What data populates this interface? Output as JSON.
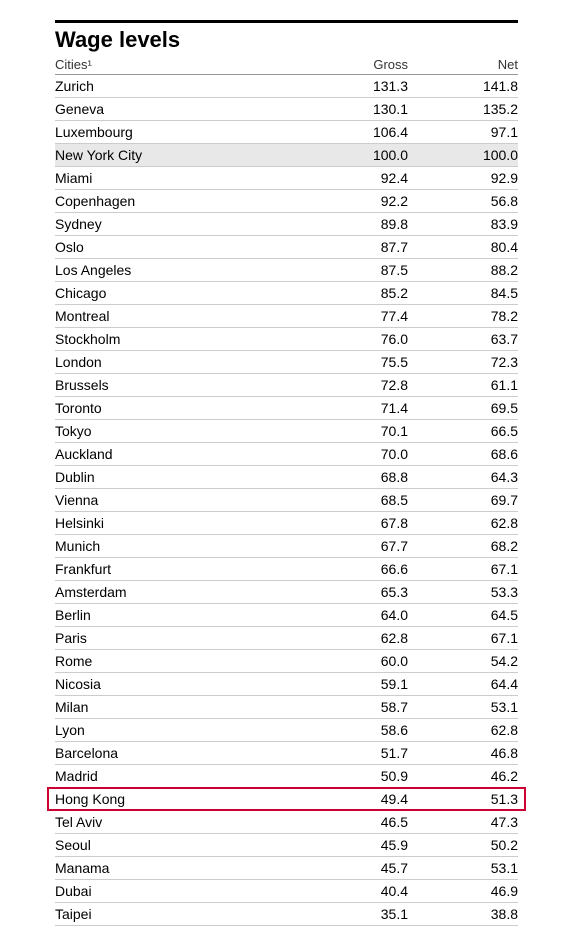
{
  "title": "Wage levels",
  "columns": {
    "city": "Cities¹",
    "gross": "Gross",
    "net": "Net"
  },
  "styling": {
    "title_fontsize": 22,
    "title_fontweight": "bold",
    "header_fontsize": 13,
    "row_fontsize": 14,
    "background_color": "#ffffff",
    "shaded_row_color": "#e8e8e8",
    "highlight_border_color": "#cc0033",
    "border_top_color": "#000000",
    "header_border_color": "#999999",
    "row_border_color": "#cccccc",
    "text_color": "#000000",
    "col_gross_width": 110,
    "col_net_width": 110
  },
  "rows": [
    {
      "city": "Zurich",
      "gross": "131.3",
      "net": "141.8",
      "shaded": false,
      "highlighted": false
    },
    {
      "city": "Geneva",
      "gross": "130.1",
      "net": "135.2",
      "shaded": false,
      "highlighted": false
    },
    {
      "city": "Luxembourg",
      "gross": "106.4",
      "net": "97.1",
      "shaded": false,
      "highlighted": false
    },
    {
      "city": "New York City",
      "gross": "100.0",
      "net": "100.0",
      "shaded": true,
      "highlighted": false
    },
    {
      "city": "Miami",
      "gross": "92.4",
      "net": "92.9",
      "shaded": false,
      "highlighted": false
    },
    {
      "city": "Copenhagen",
      "gross": "92.2",
      "net": "56.8",
      "shaded": false,
      "highlighted": false
    },
    {
      "city": "Sydney",
      "gross": "89.8",
      "net": "83.9",
      "shaded": false,
      "highlighted": false
    },
    {
      "city": "Oslo",
      "gross": "87.7",
      "net": "80.4",
      "shaded": false,
      "highlighted": false
    },
    {
      "city": "Los Angeles",
      "gross": "87.5",
      "net": "88.2",
      "shaded": false,
      "highlighted": false
    },
    {
      "city": "Chicago",
      "gross": "85.2",
      "net": "84.5",
      "shaded": false,
      "highlighted": false
    },
    {
      "city": "Montreal",
      "gross": "77.4",
      "net": "78.2",
      "shaded": false,
      "highlighted": false
    },
    {
      "city": "Stockholm",
      "gross": "76.0",
      "net": "63.7",
      "shaded": false,
      "highlighted": false
    },
    {
      "city": "London",
      "gross": "75.5",
      "net": "72.3",
      "shaded": false,
      "highlighted": false
    },
    {
      "city": "Brussels",
      "gross": "72.8",
      "net": "61.1",
      "shaded": false,
      "highlighted": false
    },
    {
      "city": "Toronto",
      "gross": "71.4",
      "net": "69.5",
      "shaded": false,
      "highlighted": false
    },
    {
      "city": "Tokyo",
      "gross": "70.1",
      "net": "66.5",
      "shaded": false,
      "highlighted": false
    },
    {
      "city": "Auckland",
      "gross": "70.0",
      "net": "68.6",
      "shaded": false,
      "highlighted": false
    },
    {
      "city": "Dublin",
      "gross": "68.8",
      "net": "64.3",
      "shaded": false,
      "highlighted": false
    },
    {
      "city": "Vienna",
      "gross": "68.5",
      "net": "69.7",
      "shaded": false,
      "highlighted": false
    },
    {
      "city": "Helsinki",
      "gross": "67.8",
      "net": "62.8",
      "shaded": false,
      "highlighted": false
    },
    {
      "city": "Munich",
      "gross": "67.7",
      "net": "68.2",
      "shaded": false,
      "highlighted": false
    },
    {
      "city": "Frankfurt",
      "gross": "66.6",
      "net": "67.1",
      "shaded": false,
      "highlighted": false
    },
    {
      "city": "Amsterdam",
      "gross": "65.3",
      "net": "53.3",
      "shaded": false,
      "highlighted": false
    },
    {
      "city": "Berlin",
      "gross": "64.0",
      "net": "64.5",
      "shaded": false,
      "highlighted": false
    },
    {
      "city": "Paris",
      "gross": "62.8",
      "net": "67.1",
      "shaded": false,
      "highlighted": false
    },
    {
      "city": "Rome",
      "gross": "60.0",
      "net": "54.2",
      "shaded": false,
      "highlighted": false
    },
    {
      "city": "Nicosia",
      "gross": "59.1",
      "net": "64.4",
      "shaded": false,
      "highlighted": false
    },
    {
      "city": "Milan",
      "gross": "58.7",
      "net": "53.1",
      "shaded": false,
      "highlighted": false
    },
    {
      "city": "Lyon",
      "gross": "58.6",
      "net": "62.8",
      "shaded": false,
      "highlighted": false
    },
    {
      "city": "Barcelona",
      "gross": "51.7",
      "net": "46.8",
      "shaded": false,
      "highlighted": false
    },
    {
      "city": "Madrid",
      "gross": "50.9",
      "net": "46.2",
      "shaded": false,
      "highlighted": false
    },
    {
      "city": "Hong Kong",
      "gross": "49.4",
      "net": "51.3",
      "shaded": false,
      "highlighted": true
    },
    {
      "city": "Tel Aviv",
      "gross": "46.5",
      "net": "47.3",
      "shaded": false,
      "highlighted": false
    },
    {
      "city": "Seoul",
      "gross": "45.9",
      "net": "50.2",
      "shaded": false,
      "highlighted": false
    },
    {
      "city": "Manama",
      "gross": "45.7",
      "net": "53.1",
      "shaded": false,
      "highlighted": false
    },
    {
      "city": "Dubai",
      "gross": "40.4",
      "net": "46.9",
      "shaded": false,
      "highlighted": false
    },
    {
      "city": "Taipei",
      "gross": "35.1",
      "net": "38.8",
      "shaded": false,
      "highlighted": false
    }
  ]
}
